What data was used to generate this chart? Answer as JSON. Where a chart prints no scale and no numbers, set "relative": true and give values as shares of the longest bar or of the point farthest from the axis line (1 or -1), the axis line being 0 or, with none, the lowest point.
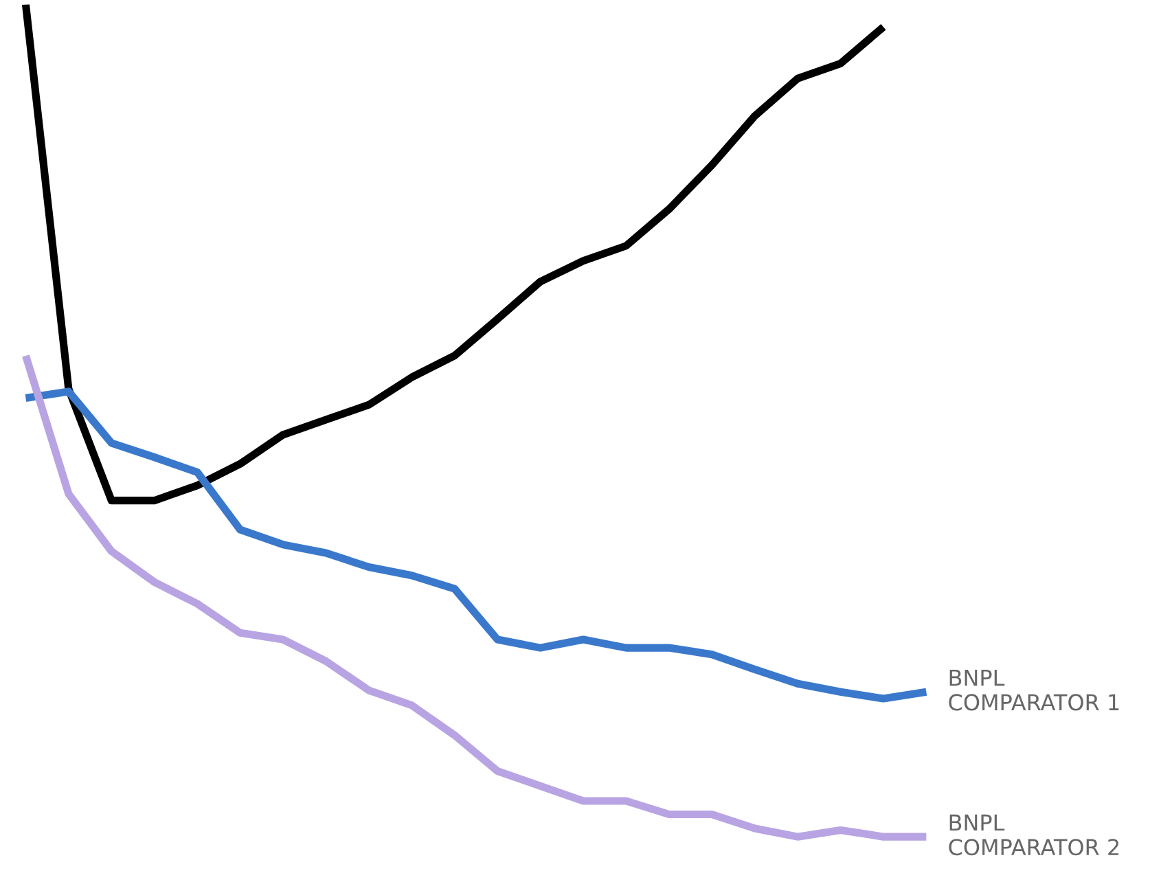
{
  "chart_data": {
    "type": "line",
    "relative": true,
    "categories": [
      null,
      null,
      null,
      null,
      null,
      null,
      null,
      null,
      null,
      null,
      null,
      null,
      null,
      null,
      null,
      null,
      null,
      null,
      null,
      null,
      null,
      null
    ],
    "series": [
      {
        "color": "#000000",
        "values": [
          1.0,
          0.538,
          0.404,
          0.404,
          0.422,
          0.448,
          0.483,
          0.501,
          0.519,
          0.552,
          0.578,
          0.622,
          0.667,
          0.692,
          0.71,
          0.754,
          0.807,
          0.866,
          0.911,
          0.929,
          0.973,
          null
        ]
      },
      {
        "name": "BNPL COMPARATOR 1",
        "color": "#3a78cc",
        "values": [
          0.527,
          0.535,
          0.473,
          0.456,
          0.438,
          0.369,
          0.351,
          0.341,
          0.324,
          0.314,
          0.298,
          0.237,
          0.227,
          0.237,
          0.227,
          0.227,
          0.219,
          0.201,
          0.184,
          0.174,
          0.166,
          0.174
        ]
      },
      {
        "name": "BNPL COMPARATOR 2",
        "color": "#b8a4e3",
        "values": [
          0.578,
          0.412,
          0.343,
          0.306,
          0.28,
          0.245,
          0.237,
          0.211,
          0.176,
          0.158,
          0.122,
          0.079,
          0.061,
          0.043,
          0.043,
          0.027,
          0.027,
          0.01,
          0,
          0.008,
          0,
          0
        ]
      }
    ],
    "marker": "none",
    "line_style": "solid"
  }
}
